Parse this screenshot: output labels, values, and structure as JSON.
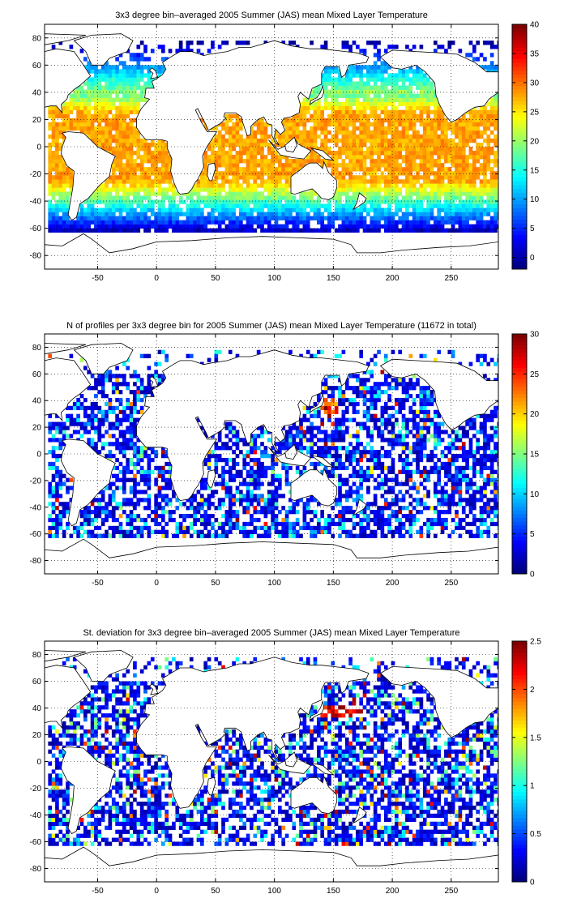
{
  "chart_data": [
    {
      "type": "heatmap",
      "title": "3x3 degree bin–averaged 2005 Summer (JAS) mean Mixed Layer Temperature",
      "xlim": [
        -95,
        290
      ],
      "ylim": [
        -90,
        90
      ],
      "xticks": [
        -50,
        0,
        50,
        100,
        150,
        200,
        250
      ],
      "yticks": [
        -80,
        -60,
        -40,
        -20,
        0,
        20,
        40,
        60,
        80
      ],
      "grid": true,
      "colorbar": {
        "min": -2,
        "max": 40,
        "ticks": [
          0,
          5,
          10,
          15,
          20,
          25,
          30,
          35,
          40
        ],
        "colormap": "jet"
      },
      "bin_size_deg": 3,
      "field": "temperature",
      "density": 0.9,
      "seed": 11,
      "description_of_values": "warm (25-30) in tropics, cooling poleward to about 0 near 60S"
    },
    {
      "type": "heatmap",
      "title": "N of profiles per 3x3 degree bin for 2005 Summer (JAS) mean Mixed Layer Temperature  (11672 in total)",
      "xlim": [
        -95,
        290
      ],
      "ylim": [
        -90,
        90
      ],
      "xticks": [
        -50,
        0,
        50,
        100,
        150,
        200,
        250
      ],
      "yticks": [
        -80,
        -60,
        -40,
        -20,
        0,
        20,
        40,
        60,
        80
      ],
      "grid": true,
      "colorbar": {
        "min": 0,
        "max": 30,
        "ticks": [
          0,
          5,
          10,
          15,
          20,
          25,
          30
        ],
        "colormap": "jet"
      },
      "bin_size_deg": 3,
      "field": "count",
      "total_profiles": 11672,
      "density": 0.62,
      "seed": 23
    },
    {
      "type": "heatmap",
      "title": "St. deviation for 3x3 degree bin–averaged 2005 Summer (JAS) mean Mixed Layer Temperature",
      "xlim": [
        -95,
        290
      ],
      "ylim": [
        -90,
        90
      ],
      "xticks": [
        -50,
        0,
        50,
        100,
        150,
        200,
        250
      ],
      "yticks": [
        -80,
        -60,
        -40,
        -20,
        0,
        20,
        40,
        60,
        80
      ],
      "grid": true,
      "colorbar": {
        "min": 0,
        "max": 2.5,
        "ticks": [
          0,
          0.5,
          1,
          1.5,
          2,
          2.5
        ],
        "colormap": "jet"
      },
      "bin_size_deg": 3,
      "field": "stdev",
      "density": 0.62,
      "seed": 37
    }
  ],
  "coastlines": {
    "lon_units": "degrees (0-360 shifted to -95..290)",
    "polygons": [
      {
        "name": "north-america",
        "pts": [
          [
            -95,
            70
          ],
          [
            -85,
            72
          ],
          [
            -70,
            70
          ],
          [
            -62,
            60
          ],
          [
            -56,
            52
          ],
          [
            -65,
            45
          ],
          [
            -70,
            42
          ],
          [
            -75,
            38
          ],
          [
            -76,
            35
          ],
          [
            -81,
            31
          ],
          [
            -80,
            25
          ],
          [
            -82,
            27
          ],
          [
            -85,
            30
          ],
          [
            -90,
            30
          ],
          [
            -95,
            29
          ]
        ]
      },
      {
        "name": "greenland",
        "pts": [
          [
            -55,
            60
          ],
          [
            -45,
            60
          ],
          [
            -40,
            65
          ],
          [
            -25,
            70
          ],
          [
            -20,
            78
          ],
          [
            -30,
            83
          ],
          [
            -55,
            82
          ],
          [
            -70,
            78
          ],
          [
            -60,
            70
          ]
        ]
      },
      {
        "name": "south-america",
        "pts": [
          [
            -80,
            10
          ],
          [
            -75,
            11
          ],
          [
            -62,
            10
          ],
          [
            -50,
            0
          ],
          [
            -35,
            -7
          ],
          [
            -38,
            -13
          ],
          [
            -40,
            -22
          ],
          [
            -48,
            -28
          ],
          [
            -58,
            -38
          ],
          [
            -65,
            -42
          ],
          [
            -68,
            -52
          ],
          [
            -72,
            -54
          ],
          [
            -75,
            -50
          ],
          [
            -73,
            -40
          ],
          [
            -71,
            -30
          ],
          [
            -70,
            -18
          ],
          [
            -76,
            -14
          ],
          [
            -81,
            -5
          ],
          [
            -80,
            0
          ],
          [
            -77,
            7
          ]
        ]
      },
      {
        "name": "eurasia-africa",
        "pts": [
          [
            -10,
            36
          ],
          [
            -9,
            43
          ],
          [
            -2,
            43
          ],
          [
            -4,
            48
          ],
          [
            0,
            50
          ],
          [
            5,
            53
          ],
          [
            8,
            57
          ],
          [
            5,
            62
          ],
          [
            14,
            67
          ],
          [
            20,
            70
          ],
          [
            30,
            70
          ],
          [
            40,
            67
          ],
          [
            45,
            68
          ],
          [
            60,
            70
          ],
          [
            70,
            73
          ],
          [
            80,
            73
          ],
          [
            100,
            78
          ],
          [
            115,
            74
          ],
          [
            130,
            72
          ],
          [
            140,
            72
          ],
          [
            160,
            70
          ],
          [
            170,
            69
          ],
          [
            180,
            66
          ],
          [
            178,
            62
          ],
          [
            163,
            60
          ],
          [
            160,
            53
          ],
          [
            157,
            51
          ],
          [
            155,
            59
          ],
          [
            143,
            59
          ],
          [
            140,
            54
          ],
          [
            140,
            46
          ],
          [
            132,
            43
          ],
          [
            129,
            35
          ],
          [
            126,
            37
          ],
          [
            122,
            40
          ],
          [
            120,
            37
          ],
          [
            122,
            31
          ],
          [
            121,
            25
          ],
          [
            114,
            22
          ],
          [
            108,
            21
          ],
          [
            106,
            18
          ],
          [
            109,
            12
          ],
          [
            105,
            9
          ],
          [
            101,
            13
          ],
          [
            100,
            7
          ],
          [
            104,
            1
          ],
          [
            101,
            3
          ],
          [
            98,
            8
          ],
          [
            98,
            16
          ],
          [
            94,
            17
          ],
          [
            91,
            22
          ],
          [
            86,
            20
          ],
          [
            80,
            15
          ],
          [
            80,
            9
          ],
          [
            77,
            8
          ],
          [
            73,
            18
          ],
          [
            72,
            22
          ],
          [
            67,
            25
          ],
          [
            58,
            25
          ],
          [
            57,
            22
          ],
          [
            59,
            21
          ],
          [
            54,
            17
          ],
          [
            44,
            12
          ],
          [
            42,
            16
          ],
          [
            39,
            21
          ],
          [
            35,
            28
          ],
          [
            33,
            27
          ],
          [
            38,
            18
          ],
          [
            43,
            11
          ],
          [
            51,
            11
          ],
          [
            42,
            -1
          ],
          [
            39,
            -7
          ],
          [
            40,
            -15
          ],
          [
            35,
            -24
          ],
          [
            33,
            -26
          ],
          [
            30,
            -31
          ],
          [
            27,
            -34
          ],
          [
            20,
            -35
          ],
          [
            18,
            -33
          ],
          [
            15,
            -27
          ],
          [
            12,
            -18
          ],
          [
            13,
            -9
          ],
          [
            9,
            -1
          ],
          [
            9,
            4
          ],
          [
            5,
            5
          ],
          [
            -5,
            5
          ],
          [
            -9,
            5
          ],
          [
            -13,
            9
          ],
          [
            -17,
            14
          ],
          [
            -17,
            21
          ],
          [
            -13,
            28
          ],
          [
            -6,
            35
          ]
        ]
      },
      {
        "name": "madagascar",
        "pts": [
          [
            44,
            -13
          ],
          [
            49,
            -12
          ],
          [
            50,
            -16
          ],
          [
            47,
            -25
          ],
          [
            45,
            -25
          ],
          [
            43,
            -21
          ]
        ]
      },
      {
        "name": "australia",
        "pts": [
          [
            114,
            -22
          ],
          [
            114,
            -34
          ],
          [
            117,
            -35
          ],
          [
            124,
            -33
          ],
          [
            132,
            -31
          ],
          [
            137,
            -35
          ],
          [
            140,
            -38
          ],
          [
            146,
            -39
          ],
          [
            150,
            -37
          ],
          [
            153,
            -30
          ],
          [
            153,
            -25
          ],
          [
            146,
            -19
          ],
          [
            142,
            -11
          ],
          [
            141,
            -16
          ],
          [
            136,
            -12
          ],
          [
            130,
            -12
          ],
          [
            126,
            -14
          ],
          [
            122,
            -17
          ]
        ]
      },
      {
        "name": "antarctica",
        "pts": [
          [
            -95,
            -72
          ],
          [
            -80,
            -73
          ],
          [
            -62,
            -64
          ],
          [
            -55,
            -68
          ],
          [
            -40,
            -78
          ],
          [
            -20,
            -75
          ],
          [
            0,
            -70
          ],
          [
            30,
            -69
          ],
          [
            60,
            -67
          ],
          [
            90,
            -66
          ],
          [
            120,
            -67
          ],
          [
            150,
            -68
          ],
          [
            165,
            -72
          ],
          [
            170,
            -78
          ],
          [
            190,
            -78
          ],
          [
            210,
            -76
          ],
          [
            240,
            -74
          ],
          [
            265,
            -73
          ],
          [
            290,
            -70
          ],
          [
            290,
            -90
          ],
          [
            -95,
            -90
          ]
        ]
      },
      {
        "name": "new-zealand",
        "pts": [
          [
            172,
            -34
          ],
          [
            178,
            -38
          ],
          [
            176,
            -41
          ],
          [
            171,
            -44
          ],
          [
            167,
            -46
          ],
          [
            170,
            -41
          ]
        ]
      },
      {
        "name": "japan",
        "pts": [
          [
            130,
            31
          ],
          [
            135,
            34
          ],
          [
            140,
            36
          ],
          [
            142,
            40
          ],
          [
            141,
            45
          ],
          [
            139,
            40
          ],
          [
            136,
            36
          ],
          [
            131,
            34
          ]
        ]
      },
      {
        "name": "uk",
        "pts": [
          [
            -5,
            50
          ],
          [
            1,
            51
          ],
          [
            -1,
            56
          ],
          [
            -4,
            58
          ],
          [
            -6,
            56
          ],
          [
            -3,
            54
          ]
        ]
      },
      {
        "name": "north-america-east-wrap",
        "pts": [
          [
            190,
            66
          ],
          [
            200,
            71
          ],
          [
            220,
            70
          ],
          [
            240,
            69
          ],
          [
            255,
            68
          ],
          [
            270,
            62
          ],
          [
            280,
            55
          ],
          [
            290,
            55
          ],
          [
            290,
            40
          ],
          [
            282,
            35
          ],
          [
            278,
            30
          ],
          [
            270,
            29
          ],
          [
            262,
            25
          ],
          [
            255,
            20
          ],
          [
            250,
            18
          ],
          [
            245,
            23
          ],
          [
            240,
            31
          ],
          [
            237,
            38
          ],
          [
            236,
            47
          ],
          [
            228,
            55
          ],
          [
            220,
            60
          ],
          [
            208,
            57
          ],
          [
            200,
            58
          ],
          [
            195,
            62
          ]
        ]
      },
      {
        "name": "indonesia",
        "pts": [
          [
            95,
            5
          ],
          [
            105,
            -6
          ],
          [
            115,
            -8
          ],
          [
            125,
            -9
          ],
          [
            131,
            -3
          ],
          [
            120,
            2
          ],
          [
            118,
            5
          ],
          [
            110,
            1
          ],
          [
            103,
            -2
          ]
        ]
      },
      {
        "name": "new-guinea",
        "pts": [
          [
            131,
            -1
          ],
          [
            141,
            -3
          ],
          [
            150,
            -10
          ],
          [
            143,
            -9
          ],
          [
            137,
            -5
          ]
        ]
      },
      {
        "name": "borneo",
        "pts": [
          [
            109,
            1
          ],
          [
            117,
            7
          ],
          [
            119,
            1
          ],
          [
            116,
            -4
          ],
          [
            110,
            -3
          ]
        ]
      },
      {
        "name": "arctic-islands",
        "pts": [
          [
            -95,
            75
          ],
          [
            -75,
            78
          ],
          [
            -60,
            82
          ],
          [
            -95,
            83
          ]
        ]
      }
    ]
  }
}
